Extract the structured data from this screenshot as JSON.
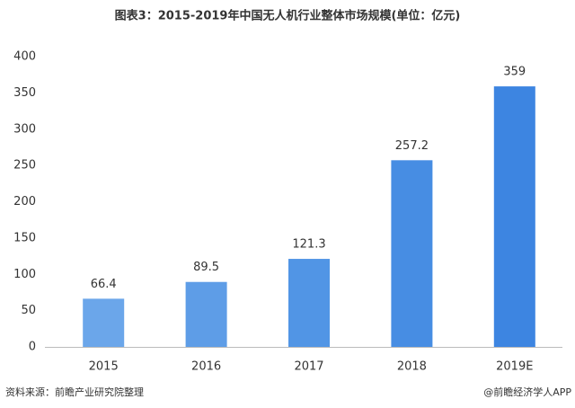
{
  "chart_data": {
    "type": "bar",
    "title": "图表3：2015-2019年中国无人机行业整体市场规模(单位：亿元)",
    "categories": [
      "2015",
      "2016",
      "2017",
      "2018",
      "2019E"
    ],
    "values": [
      66.4,
      89.5,
      121.3,
      257.2,
      359
    ],
    "colors": [
      "#6ba6ea",
      "#5e9de7",
      "#5195e5",
      "#478de3",
      "#3d85e1"
    ],
    "ylim": [
      0,
      400
    ],
    "yticks": [
      0,
      50,
      100,
      150,
      200,
      250,
      300,
      350,
      400
    ],
    "grid": false,
    "source": "资料来源：前瞻产业研究院整理",
    "credit": "@前瞻经济学人APP"
  }
}
